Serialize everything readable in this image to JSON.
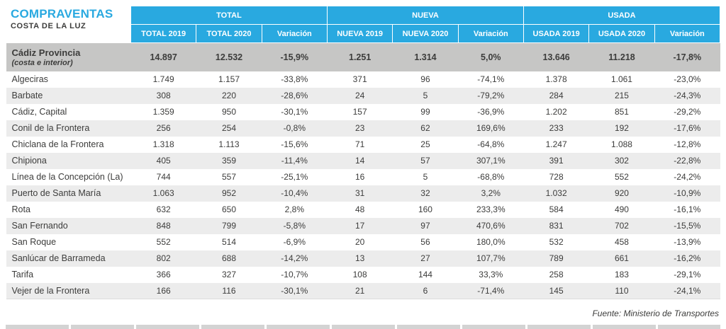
{
  "header": {
    "title": "COMPRAVENTAS",
    "subtitle": "COSTA DE LA LUZ"
  },
  "colors": {
    "accent": "#29a9e0",
    "summary_bg": "#c6c6c5",
    "stripe": "#ececec"
  },
  "chart_data": {
    "type": "table",
    "title": "COMPRAVENTAS COSTA DE LA LUZ",
    "column_groups": [
      "TOTAL",
      "NUEVA",
      "USADA"
    ],
    "columns": [
      "TOTAL 2019",
      "TOTAL 2020",
      "Variación",
      "NUEVA 2019",
      "NUEVA 2020",
      "Variación",
      "USADA 2019",
      "USADA 2020",
      "Variación"
    ],
    "summary_row": {
      "name": "Cádiz Provincia",
      "subname": "(costa e interior)",
      "values": [
        "14.897",
        "12.532",
        "-15,9%",
        "1.251",
        "1.314",
        "5,0%",
        "13.646",
        "11.218",
        "-17,8%"
      ]
    },
    "rows": [
      {
        "name": "Algeciras",
        "values": [
          "1.749",
          "1.157",
          "-33,8%",
          "371",
          "96",
          "-74,1%",
          "1.378",
          "1.061",
          "-23,0%"
        ]
      },
      {
        "name": "Barbate",
        "values": [
          "308",
          "220",
          "-28,6%",
          "24",
          "5",
          "-79,2%",
          "284",
          "215",
          "-24,3%"
        ]
      },
      {
        "name": "Cádiz, Capital",
        "values": [
          "1.359",
          "950",
          "-30,1%",
          "157",
          "99",
          "-36,9%",
          "1.202",
          "851",
          "-29,2%"
        ]
      },
      {
        "name": "Conil de la Frontera",
        "values": [
          "256",
          "254",
          "-0,8%",
          "23",
          "62",
          "169,6%",
          "233",
          "192",
          "-17,6%"
        ]
      },
      {
        "name": "Chiclana de la Frontera",
        "values": [
          "1.318",
          "1.113",
          "-15,6%",
          "71",
          "25",
          "-64,8%",
          "1.247",
          "1.088",
          "-12,8%"
        ]
      },
      {
        "name": "Chipiona",
        "values": [
          "405",
          "359",
          "-11,4%",
          "14",
          "57",
          "307,1%",
          "391",
          "302",
          "-22,8%"
        ]
      },
      {
        "name": "Línea de la Concepción (La)",
        "values": [
          "744",
          "557",
          "-25,1%",
          "16",
          "5",
          "-68,8%",
          "728",
          "552",
          "-24,2%"
        ]
      },
      {
        "name": "Puerto de Santa María",
        "values": [
          "1.063",
          "952",
          "-10,4%",
          "31",
          "32",
          "3,2%",
          "1.032",
          "920",
          "-10,9%"
        ]
      },
      {
        "name": "Rota",
        "values": [
          "632",
          "650",
          "2,8%",
          "48",
          "160",
          "233,3%",
          "584",
          "490",
          "-16,1%"
        ]
      },
      {
        "name": "San Fernando",
        "values": [
          "848",
          "799",
          "-5,8%",
          "17",
          "97",
          "470,6%",
          "831",
          "702",
          "-15,5%"
        ]
      },
      {
        "name": "San Roque",
        "values": [
          "552",
          "514",
          "-6,9%",
          "20",
          "56",
          "180,0%",
          "532",
          "458",
          "-13,9%"
        ]
      },
      {
        "name": "Sanlúcar de Barrameda",
        "values": [
          "802",
          "688",
          "-14,2%",
          "13",
          "27",
          "107,7%",
          "789",
          "661",
          "-16,2%"
        ]
      },
      {
        "name": "Tarifa",
        "values": [
          "366",
          "327",
          "-10,7%",
          "108",
          "144",
          "33,3%",
          "258",
          "183",
          "-29,1%"
        ]
      },
      {
        "name": "Vejer de la Frontera",
        "values": [
          "166",
          "116",
          "-30,1%",
          "21",
          "6",
          "-71,4%",
          "145",
          "110",
          "-24,1%"
        ]
      }
    ]
  },
  "footer": {
    "source": "Fuente: Ministerio de Transportes"
  }
}
